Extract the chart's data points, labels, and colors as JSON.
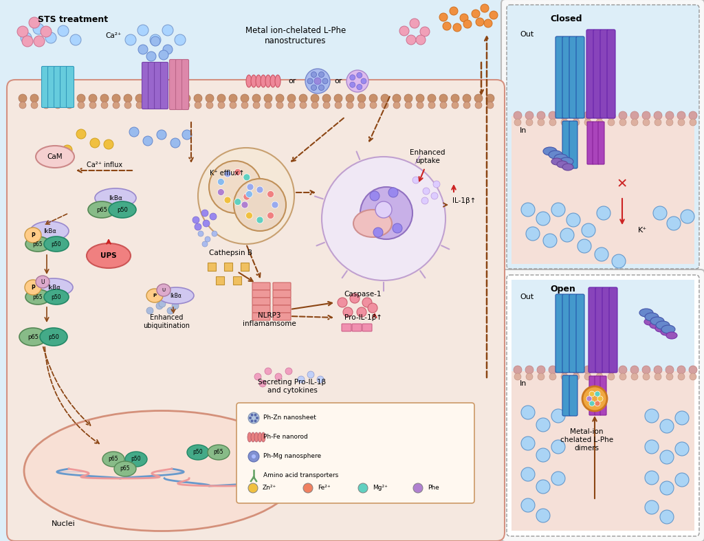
{
  "bg_outer": "#f5f0f0",
  "bg_main": "#ddeef8",
  "bg_cell": "#f5e8e0",
  "bg_nucleus": "#f0d8d0",
  "bg_right_top": "#ddeef8",
  "bg_right_bot": "#f5e8e0",
  "color_arrow": "#8B4513",
  "color_border": "#cc8844",
  "left_panel_label": "STS treatment",
  "right_top_label": "Closed",
  "right_bot_label": "Open",
  "nuclei_label": "Nuclei",
  "labels": {
    "cam": "CaM",
    "ca_influx": "Ca²⁺ influx",
    "k_efflux": "K⁺ efflux↑",
    "ups": "UPS",
    "cathepsin_b": "Cathepsin B",
    "nlrp3": "NLRP3\ninflamamsome",
    "caspase1": "Caspase-1",
    "pro_il1b": "Pro-IL-1β↑",
    "il1b": "IL-1β↑",
    "enhanced_uptake": "Enhanced\nuptake",
    "enhanced_ubiq": "Enhanced\nubiquitination",
    "secreting": "Secreting Pro-IL-1β\nand cytokines",
    "metal_nano": "Metal ion-chelated L-Phe\nnanostructures",
    "ca2": "Ca²⁺",
    "out": "Out",
    "in_label": "In",
    "k_plus": "K⁺",
    "metal_dimers": "Metal-ion\nchelated L-Phe\ndimers"
  },
  "legend_items": [
    {
      "label": "Ph-Zn nanosheet",
      "color": "#b0c4de",
      "shape": "hex"
    },
    {
      "label": "Ph-Fe nanorod",
      "color": "#e88080",
      "shape": "rod"
    },
    {
      "label": "Ph-Mg nanosphere",
      "color": "#8090d0",
      "shape": "sphere"
    },
    {
      "label": "Amino acid transporters",
      "color": "#60a060",
      "shape": "Y"
    }
  ],
  "ion_legend": [
    {
      "label": "Zn²⁺",
      "color": "#f0c040"
    },
    {
      "label": "Fe²⁺",
      "color": "#f08060"
    },
    {
      "label": "Mg²⁺",
      "color": "#60d0c0"
    },
    {
      "label": "Phe",
      "color": "#b080d0"
    }
  ]
}
